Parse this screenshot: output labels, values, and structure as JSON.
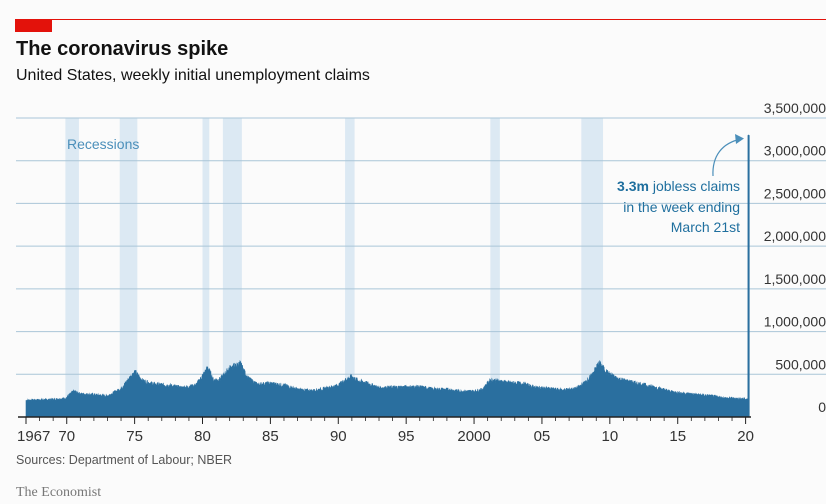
{
  "header": {
    "title": "The coronavirus spike",
    "subtitle": "United States, weekly initial unemployment claims"
  },
  "footer": {
    "source": "Sources: Department of Labour; NBER",
    "brand": "The Economist"
  },
  "colors": {
    "accent": "#e3120b",
    "series": "#2a6f9f",
    "recession": "#dce9f3",
    "annotation": "#1f6f9e"
  },
  "chart_data": {
    "type": "area",
    "title": "The coronavirus spike",
    "subtitle": "United States, weekly initial unemployment claims",
    "xlabel": "",
    "ylabel": "",
    "xlim": [
      1967,
      2020.25
    ],
    "ylim": [
      0,
      3500000
    ],
    "y_ticks": [
      0,
      500000,
      1000000,
      1500000,
      2000000,
      2500000,
      3000000,
      3500000
    ],
    "y_tick_labels": [
      "0",
      "500,000",
      "1,000,000",
      "1,500,000",
      "2,000,000",
      "2,500,000",
      "3,000,000",
      "3,500,000"
    ],
    "x_ticks": [
      1967,
      1970,
      1975,
      1980,
      1985,
      1990,
      1995,
      2000,
      2005,
      2010,
      2015,
      2020
    ],
    "x_tick_labels": [
      "1967",
      "70",
      "75",
      "80",
      "85",
      "90",
      "95",
      "2000",
      "05",
      "10",
      "15",
      "20"
    ],
    "grid": true,
    "recessions_label": "Recessions",
    "recessions": [
      [
        1969.9,
        1970.9
      ],
      [
        1973.9,
        1975.2
      ],
      [
        1980.0,
        1980.5
      ],
      [
        1981.5,
        1982.9
      ],
      [
        1990.5,
        1991.2
      ],
      [
        2001.2,
        2001.9
      ],
      [
        2007.9,
        2009.5
      ]
    ],
    "x": [
      1967.0,
      1968.0,
      1969.0,
      1969.9,
      1970.5,
      1971.0,
      1972.0,
      1973.0,
      1974.0,
      1974.6,
      1975.0,
      1975.6,
      1976.5,
      1977.5,
      1978.5,
      1979.5,
      1980.0,
      1980.4,
      1980.8,
      1981.3,
      1982.0,
      1982.8,
      1983.3,
      1984.0,
      1985.0,
      1986.0,
      1987.0,
      1988.0,
      1989.0,
      1990.0,
      1990.5,
      1991.0,
      1991.5,
      1992.0,
      1993.0,
      1994.0,
      1995.0,
      1996.0,
      1997.0,
      1998.0,
      1999.0,
      2000.0,
      2000.6,
      2001.2,
      2001.8,
      2002.5,
      2003.5,
      2004.5,
      2005.5,
      2006.5,
      2007.5,
      2008.0,
      2008.6,
      2009.2,
      2009.8,
      2010.5,
      2011.5,
      2012.5,
      2013.5,
      2014.5,
      2015.5,
      2016.5,
      2017.5,
      2018.5,
      2019.5,
      2020.0,
      2020.17,
      2020.2,
      2020.22
    ],
    "series": [
      {
        "values": [
          195000,
          200000,
          205000,
          215000,
          300000,
          270000,
          260000,
          245000,
          330000,
          450000,
          530000,
          420000,
          380000,
          370000,
          340000,
          370000,
          480000,
          580000,
          430000,
          440000,
          570000,
          620000,
          460000,
          380000,
          390000,
          370000,
          320000,
          305000,
          330000,
          370000,
          430000,
          470000,
          420000,
          400000,
          340000,
          345000,
          350000,
          350000,
          325000,
          320000,
          300000,
          300000,
          320000,
          430000,
          420000,
          400000,
          390000,
          345000,
          330000,
          315000,
          330000,
          380000,
          470000,
          630000,
          520000,
          450000,
          410000,
          375000,
          340000,
          295000,
          275000,
          260000,
          245000,
          220000,
          215000,
          210000,
          215000,
          3300000,
          3300000
        ]
      }
    ],
    "annotations": [
      {
        "bold": "3.3m",
        "text": " jobless claims"
      },
      {
        "text": "in the week ending"
      },
      {
        "text": "March 21st"
      }
    ]
  }
}
